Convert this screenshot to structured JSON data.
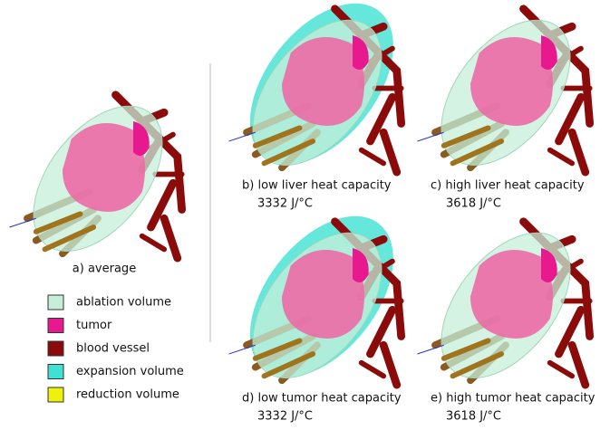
{
  "panels": [
    {
      "caption": "a) average",
      "expansion": false
    },
    {
      "caption": "b) low liver heat capacity",
      "value": "3332 J/°C",
      "expansion": true
    },
    {
      "caption": "c) high liver heat capacity",
      "value": "3618 J/°C",
      "expansion": false
    },
    {
      "caption": "d) low tumor heat capacity",
      "value": "3332 J/°C",
      "expansion": true
    },
    {
      "caption": "e) high tumor heat capacity",
      "value": "3618 J/°C",
      "expansion": false
    }
  ],
  "legend": [
    {
      "name": "ablation volume",
      "color": "#c6efd9"
    },
    {
      "name": "tumor",
      "color": "#e8188f"
    },
    {
      "name": "blood vessel",
      "color": "#8b0a0a"
    },
    {
      "name": "expansion volume",
      "color": "#3fe2d2"
    },
    {
      "name": "reduction volume",
      "color": "#eef20a"
    }
  ]
}
